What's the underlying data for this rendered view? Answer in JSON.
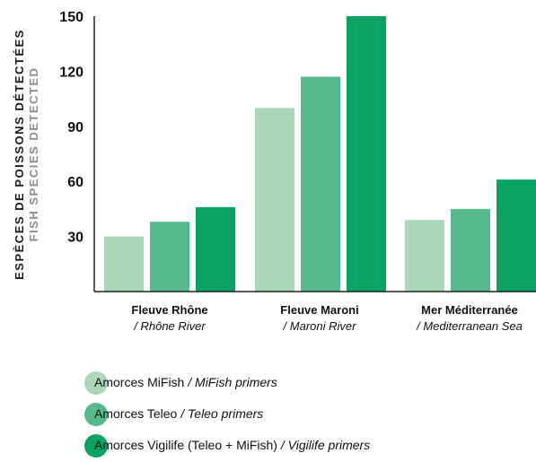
{
  "chart_data": {
    "type": "bar",
    "ylabel_fr": "ESPÈCES DE POISSONS DÉTECTÉES",
    "ylabel_en": "FISH SPECIES DETECTED",
    "ylim": [
      0,
      150
    ],
    "yticks": [
      30,
      60,
      90,
      120,
      150
    ],
    "categories": [
      {
        "fr": "Fleuve Rhône",
        "en": "/ Rhône River"
      },
      {
        "fr": "Fleuve Maroni",
        "en": "/ Maroni River"
      },
      {
        "fr": "Mer Méditerranée",
        "en": "/ Mediterranean Sea"
      }
    ],
    "series": [
      {
        "name_fr": "Amorces MiFish",
        "name_en": "/ MiFish primers",
        "color": "#acd7b9",
        "values": [
          30,
          100,
          39
        ]
      },
      {
        "name_fr": "Amorces Teleo",
        "name_en": "/ Teleo primers",
        "color": "#56b98d",
        "values": [
          38,
          117,
          45
        ]
      },
      {
        "name_fr": "Amorces Vigilife (Teleo + MiFish)",
        "name_en": "/ Vigilife primers",
        "color": "#0aa363",
        "values": [
          46,
          150,
          61
        ]
      }
    ],
    "grid": false,
    "legend_position": "bottom-left"
  }
}
